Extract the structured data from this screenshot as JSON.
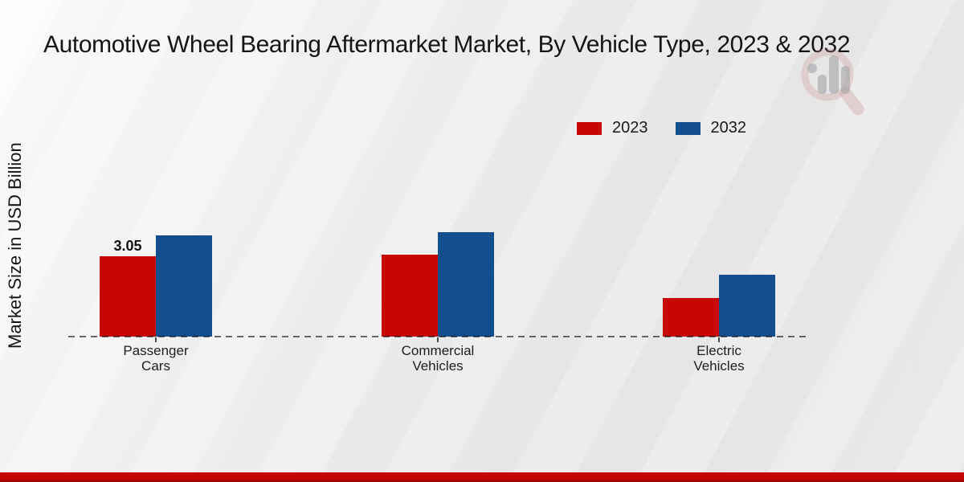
{
  "title": "Automotive Wheel Bearing Aftermarket Market, By Vehicle Type, 2023 & 2032",
  "y_axis_label": "Market Size in USD Billion",
  "legend": {
    "items": [
      {
        "label": "2023",
        "color": "#c90606"
      },
      {
        "label": "2032",
        "color": "#134f8e"
      }
    ]
  },
  "chart_data": {
    "type": "bar",
    "title": "Automotive Wheel Bearing Aftermarket Market, By Vehicle Type, 2023 & 2032",
    "categories": [
      "Passenger Cars",
      "Commercial Vehicles",
      "Electric Vehicles"
    ],
    "category_lines": [
      [
        "Passenger",
        "Cars"
      ],
      [
        "Commercial",
        "Vehicles"
      ],
      [
        "Electric",
        "Vehicles"
      ]
    ],
    "series": [
      {
        "name": "2023",
        "color": "#c90606",
        "values": [
          3.05,
          3.1,
          1.45
        ]
      },
      {
        "name": "2032",
        "color": "#134f8e",
        "values": [
          3.85,
          3.95,
          2.35
        ]
      }
    ],
    "data_labels": [
      {
        "series_index": 0,
        "category_index": 0,
        "text": "3.05"
      }
    ],
    "xlabel": "",
    "ylabel": "Market Size in USD Billion",
    "ylim": [
      0,
      4.5
    ],
    "grid": false,
    "legend_position": "top-right",
    "baseline_style": "dashed",
    "colors": {
      "series_2023": "#c90606",
      "series_2032": "#134f8e",
      "footer_band": "#c30404"
    }
  },
  "watermark": {
    "icon": "magnifier-bar-chart-logo"
  },
  "footer": {
    "accent_color": "#c30404"
  }
}
